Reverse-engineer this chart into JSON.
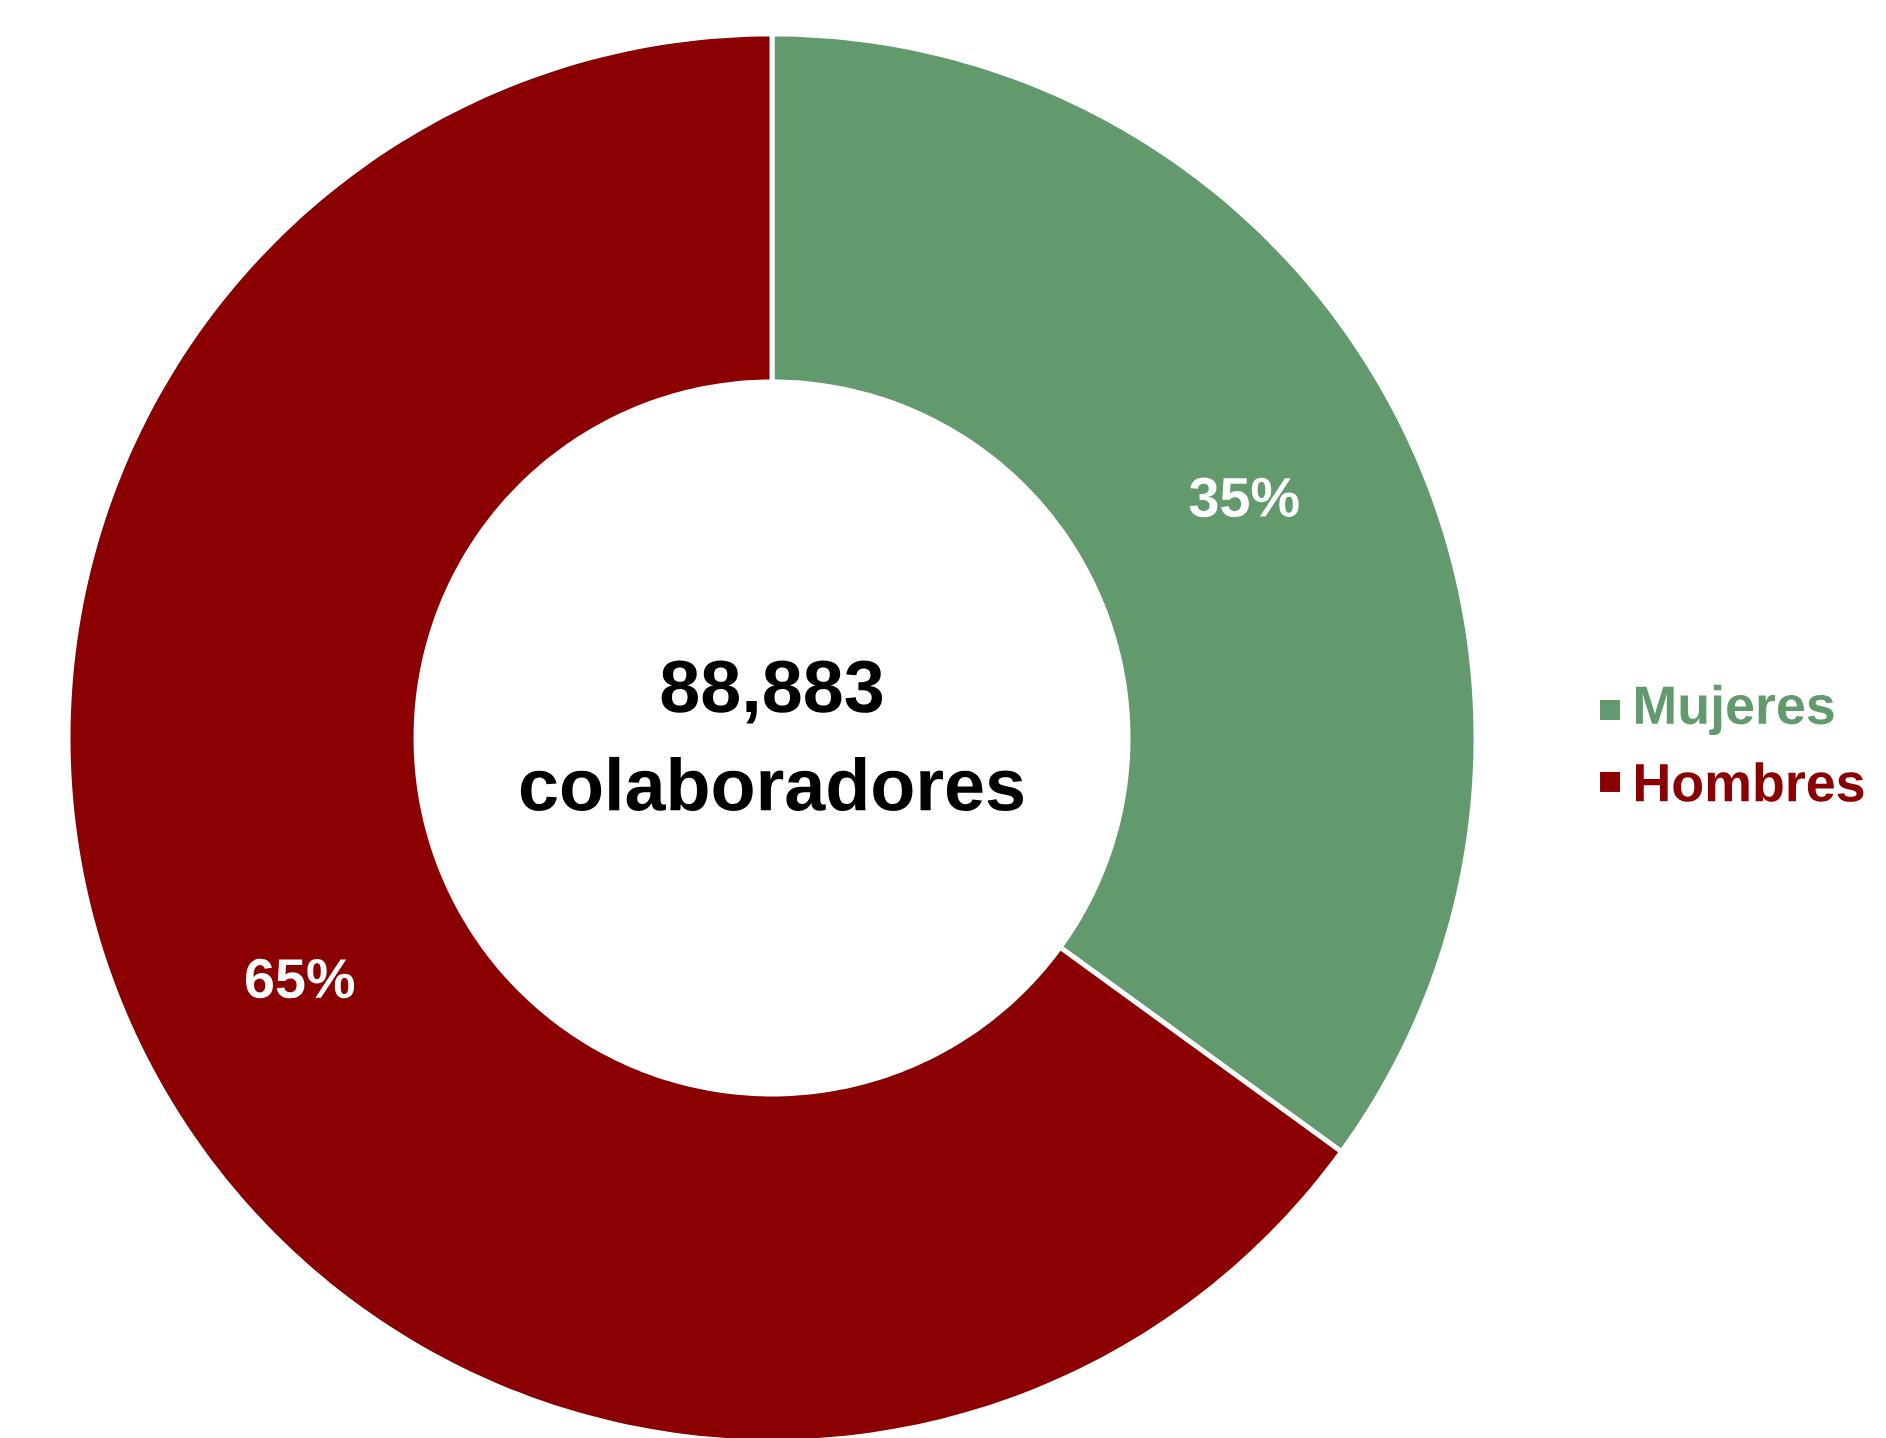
{
  "chart_data": {
    "type": "donut",
    "categories": [
      "Mujeres",
      "Hombres"
    ],
    "values": [
      35,
      65
    ],
    "colors": [
      "#629a6e",
      "#8b0000"
    ],
    "value_labels": [
      "35%",
      "65%"
    ],
    "legend": "right",
    "annotations": [
      "88,883",
      "colaboradores"
    ]
  }
}
